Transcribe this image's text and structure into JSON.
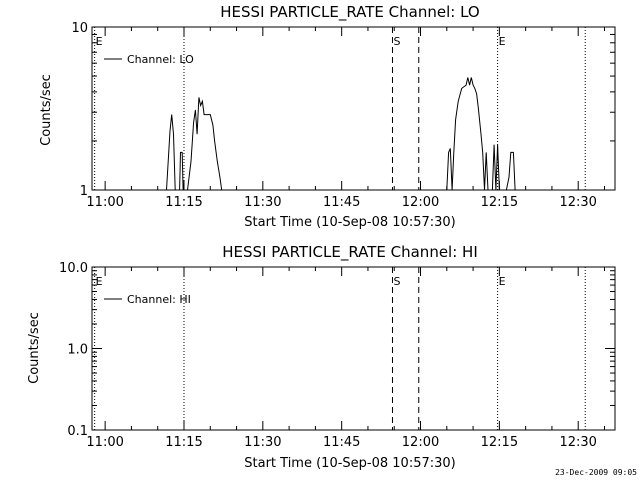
{
  "footer_date": "23-Dec-2009 09:05",
  "chart_data": [
    {
      "type": "line",
      "title": "HESSI PARTICLE_RATE Channel: LO",
      "xlabel": "Start Time (10-Sep-08 10:57:30)",
      "ylabel": "Counts/sec",
      "y_scale": "log",
      "ylim": [
        1,
        10
      ],
      "y_ticks": [
        1,
        10
      ],
      "y_tick_labels": [
        "1",
        "10"
      ],
      "xlim": [
        "10:57:30",
        "12:37:00"
      ],
      "x_ticks": [
        "11:00",
        "11:15",
        "11:30",
        "11:45",
        "12:00",
        "12:15",
        "12:30"
      ],
      "grid": false,
      "legend": {
        "entries": [
          "Channel: LO"
        ],
        "placement": "top-left"
      },
      "markers": [
        {
          "label": "E",
          "time": "10:58:00",
          "style": "dotted"
        },
        {
          "label": "",
          "time": "11:15:00",
          "style": "dotted"
        },
        {
          "label": "S",
          "time": "11:54:40",
          "style": "dashed"
        },
        {
          "label": "",
          "time": "11:59:40",
          "style": "dashed"
        },
        {
          "label": "E",
          "time": "12:14:40",
          "style": "dotted"
        },
        {
          "label": "",
          "time": "12:31:20",
          "style": "dotted"
        }
      ],
      "series": [
        {
          "name": "Channel: LO",
          "x": [
            "11:11:40",
            "11:12:20",
            "11:12:40",
            "11:13:00",
            "11:13:20",
            "11:13:40",
            "11:14:10",
            "11:14:20",
            "11:14:40",
            "11:14:50",
            "11:15:20",
            "11:15:40",
            "11:16:20",
            "11:16:50",
            "11:17:10",
            "11:17:30",
            "11:17:50",
            "11:18:10",
            "11:18:30",
            "11:18:50",
            "11:19:10",
            "11:20:00",
            "11:20:30",
            "11:20:50",
            "11:21:20",
            "11:21:50",
            "11:22:10",
            "11:22:30",
            "11:22:50",
            "12:05:00",
            "12:05:20",
            "12:05:40",
            "12:06:00",
            "12:06:20",
            "12:06:40",
            "12:07:10",
            "12:07:50",
            "12:08:40",
            "12:09:00",
            "12:09:20",
            "12:09:40",
            "12:10:00",
            "12:10:20",
            "12:10:40",
            "12:11:00",
            "12:11:30",
            "12:11:50",
            "12:12:10",
            "12:12:30",
            "12:12:50",
            "12:13:10",
            "12:13:40",
            "12:14:00",
            "12:14:20",
            "12:14:40",
            "12:15:00",
            "12:15:20",
            "12:15:40",
            "12:16:20",
            "12:16:50",
            "12:17:10",
            "12:17:40",
            "12:18:00"
          ],
          "y": [
            1.0,
            2.3,
            2.9,
            2.2,
            1.0,
            1.0,
            1.0,
            1.7,
            1.7,
            1.0,
            1.0,
            1.0,
            1.5,
            2.6,
            3.1,
            2.2,
            3.7,
            3.3,
            3.5,
            2.9,
            2.9,
            2.9,
            2.5,
            2.0,
            1.5,
            1.2,
            1.0,
            1.0,
            1.0,
            1.0,
            1.7,
            1.8,
            1.0,
            1.7,
            2.7,
            3.5,
            4.2,
            4.4,
            4.9,
            4.4,
            4.9,
            4.4,
            4.2,
            3.9,
            3.2,
            2.2,
            1.7,
            1.0,
            1.7,
            1.0,
            1.0,
            1.0,
            1.9,
            1.0,
            1.9,
            1.0,
            1.0,
            1.0,
            1.0,
            1.2,
            1.7,
            1.7,
            1.0
          ]
        }
      ]
    },
    {
      "type": "line",
      "title": "HESSI PARTICLE_RATE Channel: HI",
      "xlabel": "Start Time (10-Sep-08 10:57:30)",
      "ylabel": "Counts/sec",
      "y_scale": "log",
      "ylim": [
        0.1,
        10
      ],
      "y_ticks": [
        0.1,
        1,
        10
      ],
      "y_tick_labels": [
        "0.1",
        "1.0",
        "10.0"
      ],
      "xlim": [
        "10:57:30",
        "12:37:00"
      ],
      "x_ticks": [
        "11:00",
        "11:15",
        "11:30",
        "11:45",
        "12:00",
        "12:15",
        "12:30"
      ],
      "grid": false,
      "legend": {
        "entries": [
          "Channel: HI"
        ],
        "placement": "top-left"
      },
      "markers": [
        {
          "label": "E",
          "time": "10:58:00",
          "style": "dotted"
        },
        {
          "label": "",
          "time": "11:15:00",
          "style": "dotted"
        },
        {
          "label": "S",
          "time": "11:54:40",
          "style": "dashed"
        },
        {
          "label": "",
          "time": "11:59:40",
          "style": "dashed"
        },
        {
          "label": "E",
          "time": "12:14:40",
          "style": "dotted"
        },
        {
          "label": "",
          "time": "12:31:20",
          "style": "dotted"
        }
      ],
      "series": [
        {
          "name": "Channel: HI",
          "x": [],
          "y": []
        }
      ]
    }
  ]
}
